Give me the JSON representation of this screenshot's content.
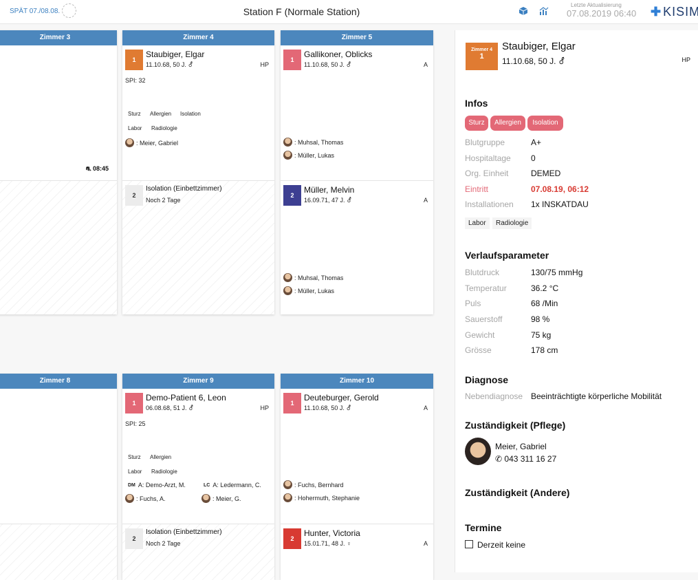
{
  "header": {
    "shift": "SPÄT 07./08.08.",
    "title": "Station F (Normale Station)",
    "update_label": "Letzte Aktualisierung",
    "update_time": "07.08.2019 06:40",
    "logo": "KISIM"
  },
  "rooms": {
    "r3": {
      "title": "Zimmer 3",
      "bed1_time": "08:45"
    },
    "r4": {
      "title": "Zimmer 4",
      "bed1": {
        "num": "1",
        "name": "Staubiger, Elgar",
        "dob": "11.10.68, 50 J.",
        "tag": "HP",
        "spi": "SPI: 32",
        "chips": [
          "Sturz",
          "Allergien",
          "Isolation",
          "Labor",
          "Radiologie"
        ],
        "staff": ": Meier, Gabriel"
      },
      "bed2": {
        "num": "2",
        "line1": "Isolation (Einbettzimmer)",
        "line2": "Noch 2 Tage"
      }
    },
    "r5": {
      "title": "Zimmer 5",
      "bed1": {
        "num": "1",
        "name": "Gallikoner, Oblicks",
        "dob": "11.10.68, 50 J.",
        "tag": "A",
        "staff1": ": Muhsal, Thomas",
        "staff2": ": Müller, Lukas"
      },
      "bed2": {
        "num": "2",
        "name": "Müller, Melvin",
        "dob": "16.09.71, 47 J.",
        "tag": "A",
        "staff1": ": Muhsal, Thomas",
        "staff2": ": Müller, Lukas"
      }
    },
    "r8": {
      "title": "Zimmer 8"
    },
    "r9": {
      "title": "Zimmer 9",
      "bed1": {
        "num": "1",
        "name": "Demo-Patient 6, Leon",
        "dob": "06.08.68, 51 J.",
        "tag": "HP",
        "spi": "SPI: 25",
        "chips": [
          "Sturz",
          "Allergien",
          "Labor",
          "Radiologie"
        ],
        "dm_badge": "DM",
        "dm_text": "A: Demo-Arzt, M.",
        "lc_badge": "LC",
        "lc_text": "A: Ledermann, C.",
        "staff1": ": Fuchs, A.",
        "staff2": ": Meier, G."
      },
      "bed2": {
        "num": "2",
        "line1": "Isolation (Einbettzimmer)",
        "line2": "Noch 2 Tage"
      }
    },
    "r10": {
      "title": "Zimmer 10",
      "bed1": {
        "num": "1",
        "name": "Deuteburger, Gerold",
        "dob": "11.10.68, 50 J.",
        "tag": "A",
        "staff1": ": Fuchs, Bernhard",
        "staff2": ": Hohermuth, Stephanie"
      },
      "bed2": {
        "num": "2",
        "name": "Hunter, Victoria",
        "dob": "15.01.71, 48 J.",
        "tag": "A"
      }
    }
  },
  "detail": {
    "room_label": "Zimmer 4",
    "bed": "1",
    "name": "Staubiger, Elgar",
    "dob": "11.10.68, 50 J.",
    "tag": "HP",
    "infos_title": "Infos",
    "info_pills": [
      "Sturz",
      "Allergien",
      "Isolation"
    ],
    "info": [
      {
        "k": "Blutgruppe",
        "v": "A+"
      },
      {
        "k": "Hospitaltage",
        "v": "0"
      },
      {
        "k": "Org. Einheit",
        "v": "DEMED"
      },
      {
        "k": "Eintritt",
        "v": "07.08.19, 06:12"
      },
      {
        "k": "Installationen",
        "v": "1x INSKATDAU"
      }
    ],
    "tags": [
      "Labor",
      "Radiologie"
    ],
    "verlauf_title": "Verlaufsparameter",
    "verlauf": [
      {
        "k": "Blutdruck",
        "v": "130/75 mmHg"
      },
      {
        "k": "Temperatur",
        "v": "36.2 °C"
      },
      {
        "k": "Puls",
        "v": "68 /Min"
      },
      {
        "k": "Sauerstoff",
        "v": "98 %"
      },
      {
        "k": "Gewicht",
        "v": "75 kg"
      },
      {
        "k": "Grösse",
        "v": "178 cm"
      }
    ],
    "diagnose_title": "Diagnose",
    "diagnose_k": "Nebendiagnose",
    "diagnose_v": "Beeinträchtigte körperliche Mobilität",
    "pflege_title": "Zuständigkeit (Pflege)",
    "pflege_name": "Meier, Gabriel",
    "pflege_phone": "043 311 16 27",
    "andere_title": "Zuständigkeit (Andere)",
    "termine_title": "Termine",
    "termine_value": "Derzeit keine"
  },
  "colors": {
    "accent": "#4c87bd",
    "orange": "#e07b32",
    "pink": "#e36876",
    "indigo": "#3d3f92",
    "red": "#d83a32"
  }
}
